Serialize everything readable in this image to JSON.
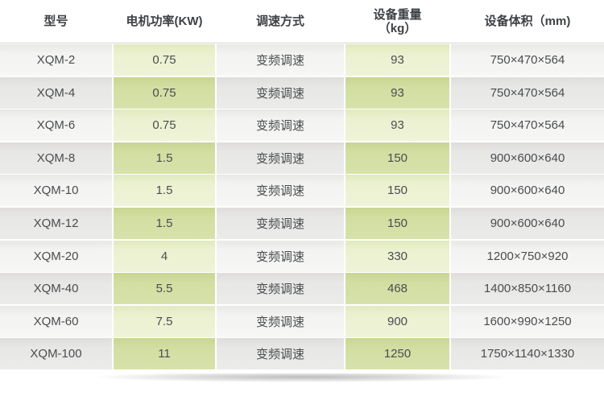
{
  "table": {
    "headers": {
      "model": "型号",
      "power": "电机功率(KW)",
      "speed": "调速方式",
      "weight_line1": "设备重量",
      "weight_line2": "（kg）",
      "volume": "设备体积（mm)"
    },
    "rows": [
      {
        "model": "XQM-2",
        "power": "0.75",
        "speed": "变频调速",
        "weight": "93",
        "volume": "750×470×564"
      },
      {
        "model": "XQM-4",
        "power": "0.75",
        "speed": "变频调速",
        "weight": "93",
        "volume": "750×470×564"
      },
      {
        "model": "XQM-6",
        "power": "0.75",
        "speed": "变频调速",
        "weight": "93",
        "volume": "750×470×564"
      },
      {
        "model": "XQM-8",
        "power": "1.5",
        "speed": "变频调速",
        "weight": "150",
        "volume": "900×600×640"
      },
      {
        "model": "XQM-10",
        "power": "1.5",
        "speed": "变频调速",
        "weight": "150",
        "volume": "900×600×640"
      },
      {
        "model": "XQM-12",
        "power": "1.5",
        "speed": "变频调速",
        "weight": "150",
        "volume": "900×600×640"
      },
      {
        "model": "XQM-20",
        "power": "4",
        "speed": "变频调速",
        "weight": "330",
        "volume": "1200×750×920"
      },
      {
        "model": "XQM-40",
        "power": "5.5",
        "speed": "变频调速",
        "weight": "468",
        "volume": "1400×850×1160"
      },
      {
        "model": "XQM-60",
        "power": "7.5",
        "speed": "变频调速",
        "weight": "900",
        "volume": "1600×990×1250"
      },
      {
        "model": "XQM-100",
        "power": "11",
        "speed": "变频调速",
        "weight": "1250",
        "volume": "1750×1140×1330"
      }
    ],
    "colors": {
      "row_light": "#f4f4f2",
      "row_dark": "#e8e8e6",
      "accent_green_light": "#eff3d8",
      "accent_green_dark": "#d7e2ab",
      "header_text": "#3e4144",
      "cell_text": "#4a4d50"
    }
  }
}
